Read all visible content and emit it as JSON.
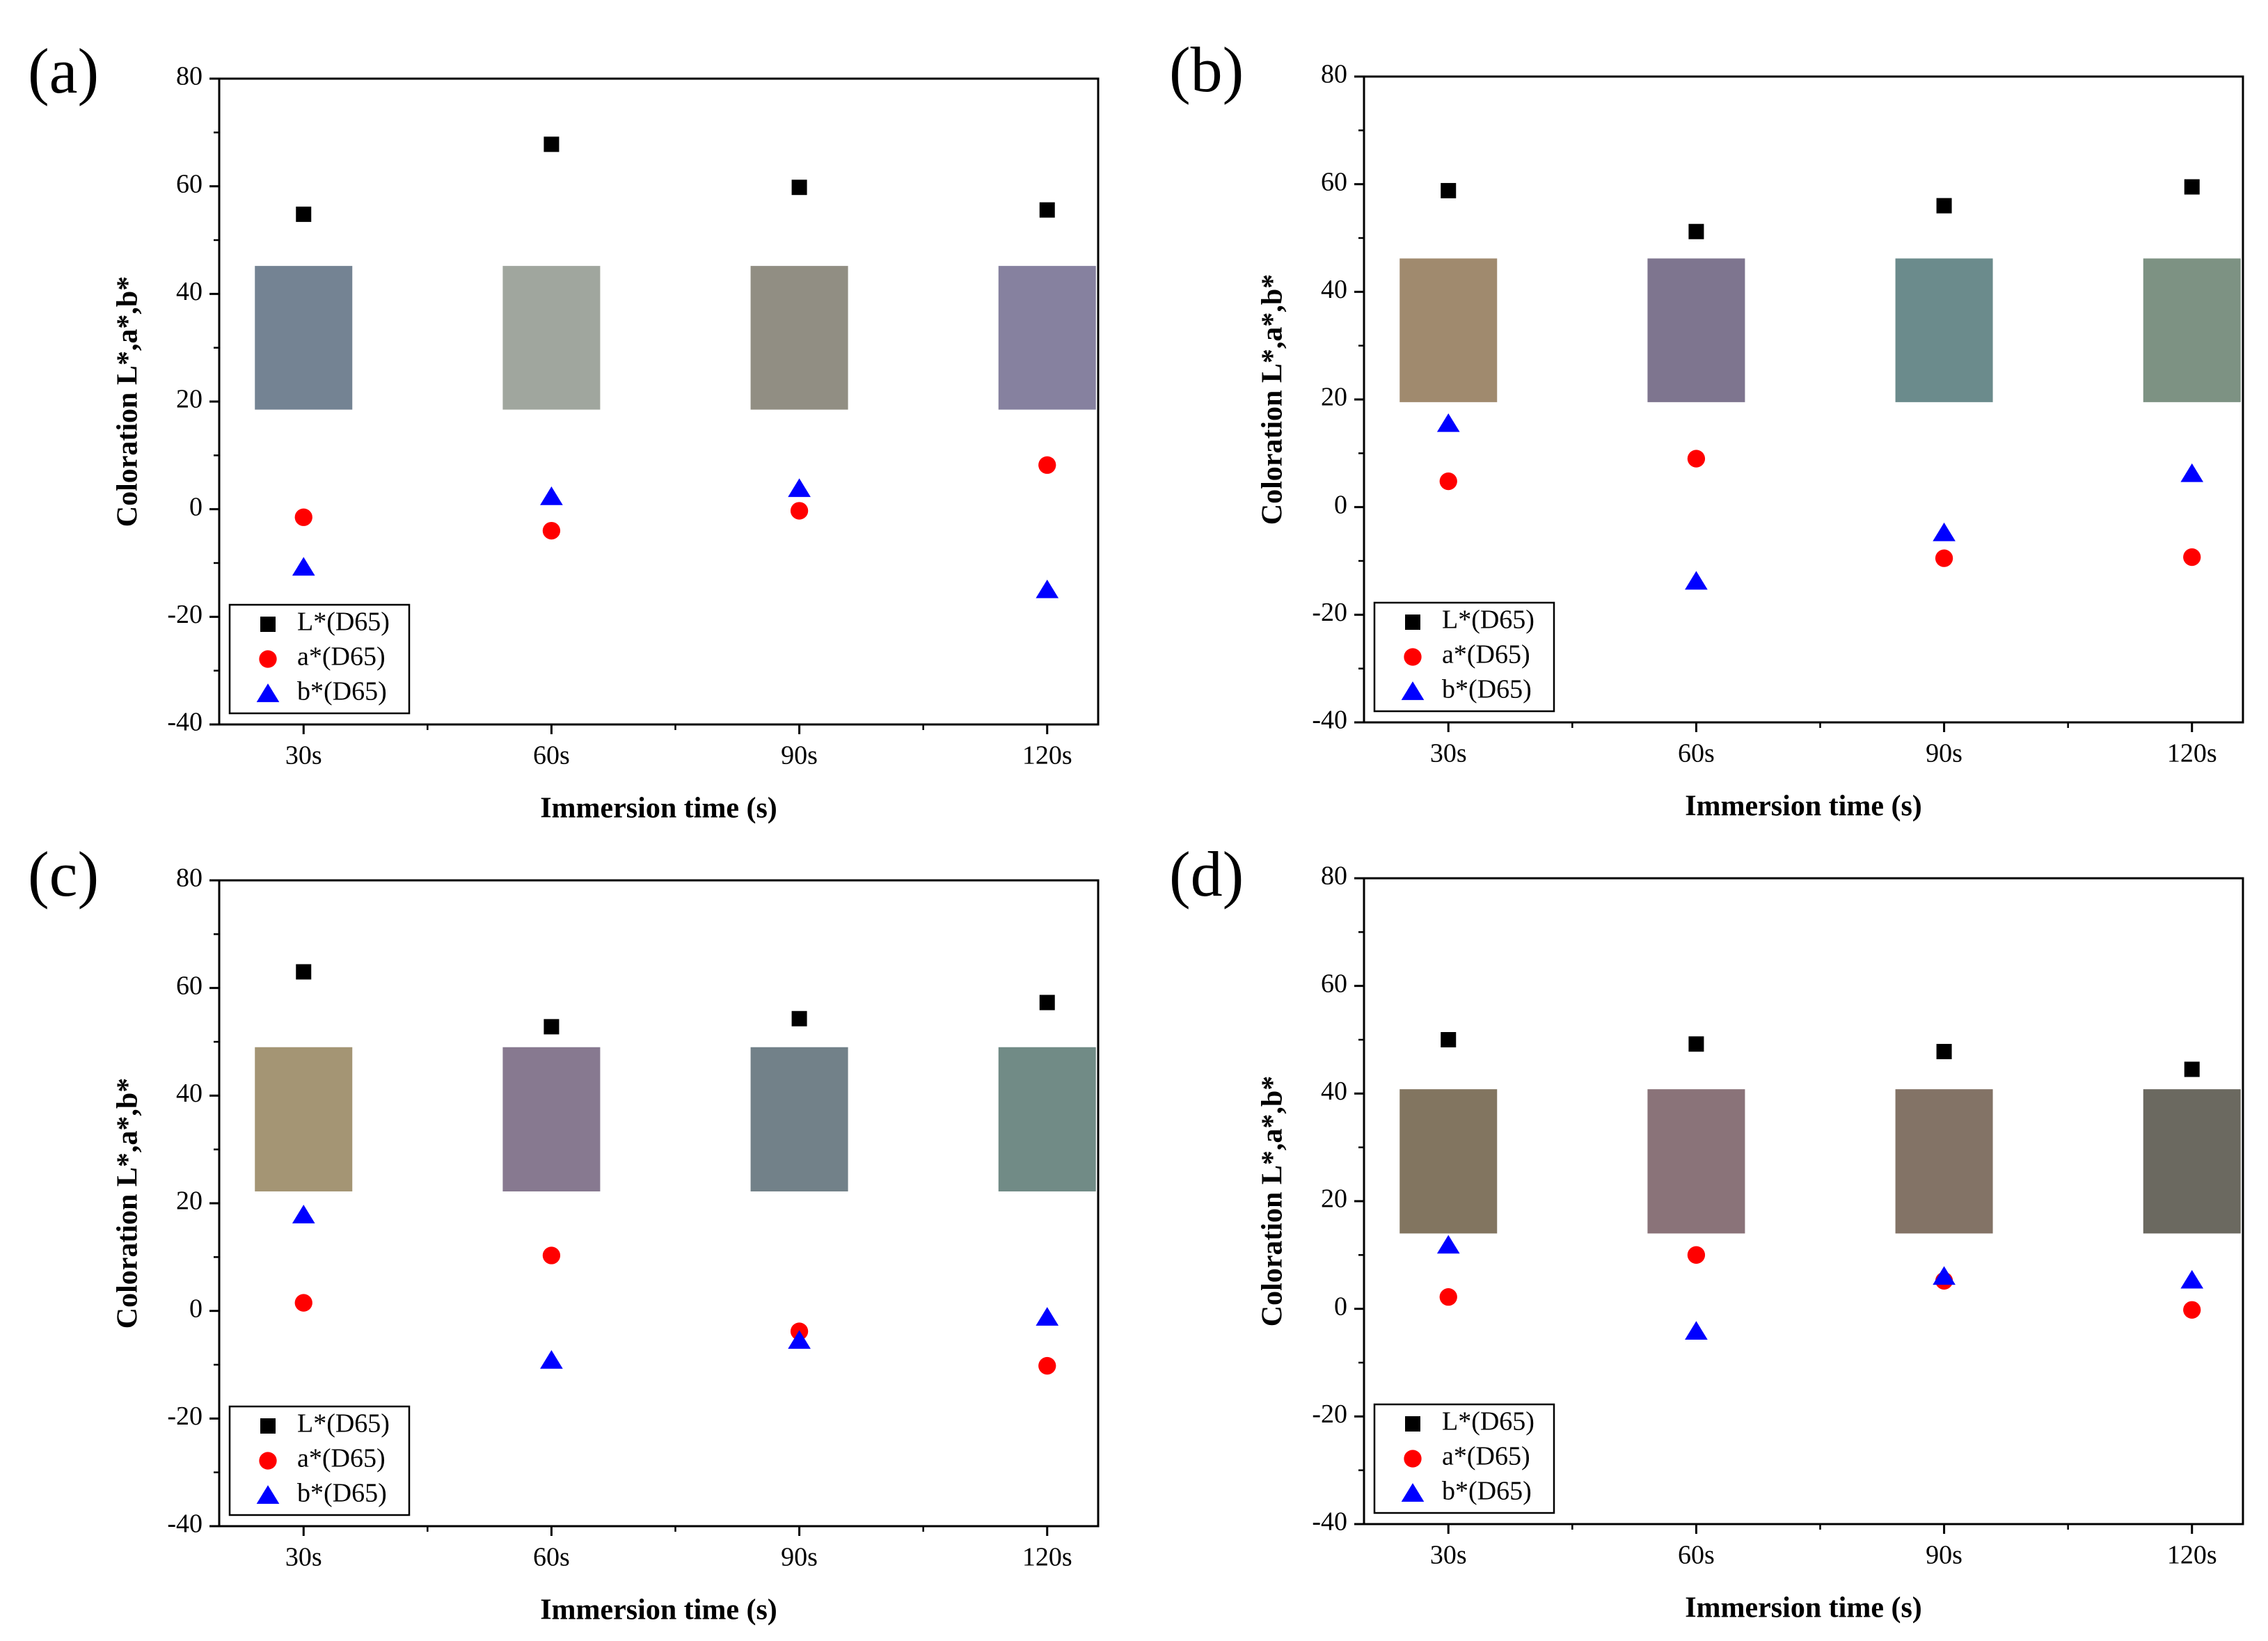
{
  "chart_data": [
    {
      "panel": "(a)",
      "type": "scatter",
      "xlabel": "Immersion time (s)",
      "ylabel": "Coloration L*,a*,b*",
      "ylim": [
        -40,
        80
      ],
      "yticks": [
        -40,
        -20,
        0,
        20,
        40,
        60,
        80
      ],
      "categories": [
        "30s",
        "60s",
        "90s",
        "120s"
      ],
      "series": [
        {
          "name": "L*(D65)",
          "marker": "square",
          "color": "#000000",
          "values": [
            54.8,
            67.8,
            59.8,
            55.6
          ]
        },
        {
          "name": "a*(D65)",
          "marker": "circle",
          "color": "#ff0000",
          "values": [
            -1.5,
            -4.0,
            -0.3,
            8.2
          ]
        },
        {
          "name": "b*(D65)",
          "marker": "triangle",
          "color": "#0000ff",
          "values": [
            -10.8,
            2.3,
            3.8,
            -15.0
          ]
        }
      ],
      "swatches": {
        "y_range": [
          18.5,
          45.2
        ],
        "colors": [
          "#748393",
          "#a0a69e",
          "#918e83",
          "#86819f"
        ]
      },
      "legend_position": "bottom-left"
    },
    {
      "panel": "(b)",
      "type": "scatter",
      "xlabel": "Immersion time (s)",
      "ylabel": "Coloration L*,a*,b*",
      "ylim": [
        -40,
        80
      ],
      "yticks": [
        -40,
        -20,
        0,
        20,
        40,
        60,
        80
      ],
      "categories": [
        "30s",
        "60s",
        "90s",
        "120s"
      ],
      "series": [
        {
          "name": "L*(D65)",
          "marker": "square",
          "color": "#000000",
          "values": [
            58.8,
            51.2,
            56.0,
            59.5
          ]
        },
        {
          "name": "a*(D65)",
          "marker": "circle",
          "color": "#ff0000",
          "values": [
            4.8,
            9.0,
            -9.5,
            -9.3
          ]
        },
        {
          "name": "b*(D65)",
          "marker": "triangle",
          "color": "#0000ff",
          "values": [
            15.5,
            -13.8,
            -4.8,
            6.2
          ]
        }
      ],
      "swatches": {
        "y_range": [
          19.5,
          46.2
        ],
        "colors": [
          "#a08a6e",
          "#7e758f",
          "#6b8b8c",
          "#7d9283"
        ]
      },
      "legend_position": "bottom-left"
    },
    {
      "panel": "(c)",
      "type": "scatter",
      "xlabel": "Immersion time (s)",
      "ylabel": "Coloration L*,a*,b*",
      "ylim": [
        -40,
        80
      ],
      "yticks": [
        -40,
        -20,
        0,
        20,
        40,
        60,
        80
      ],
      "categories": [
        "30s",
        "60s",
        "90s",
        "120s"
      ],
      "series": [
        {
          "name": "L*(D65)",
          "marker": "square",
          "color": "#000000",
          "values": [
            63.0,
            52.8,
            54.3,
            57.3
          ]
        },
        {
          "name": "a*(D65)",
          "marker": "circle",
          "color": "#ff0000",
          "values": [
            1.5,
            10.3,
            -3.8,
            -10.2
          ]
        },
        {
          "name": "b*(D65)",
          "marker": "triangle",
          "color": "#0000ff",
          "values": [
            17.8,
            -9.2,
            -5.5,
            -1.2
          ]
        }
      ],
      "swatches": {
        "y_range": [
          22.2,
          49.0
        ],
        "colors": [
          "#a49574",
          "#877990",
          "#728189",
          "#718b86"
        ]
      },
      "legend_position": "bottom-left"
    },
    {
      "panel": "(d)",
      "type": "scatter",
      "xlabel": "Immersion time (s)",
      "ylabel": "Coloration L*,a*,b*",
      "ylim": [
        -40,
        80
      ],
      "yticks": [
        -40,
        -20,
        0,
        20,
        40,
        60,
        80
      ],
      "categories": [
        "30s",
        "60s",
        "90s",
        "120s"
      ],
      "series": [
        {
          "name": "L*(D65)",
          "marker": "square",
          "color": "#000000",
          "values": [
            50.0,
            49.2,
            47.8,
            44.5
          ]
        },
        {
          "name": "a*(D65)",
          "marker": "circle",
          "color": "#ff0000",
          "values": [
            2.2,
            10.0,
            5.2,
            -0.2
          ]
        },
        {
          "name": "b*(D65)",
          "marker": "triangle",
          "color": "#0000ff",
          "values": [
            11.8,
            -4.2,
            6.0,
            5.3
          ]
        }
      ],
      "swatches": {
        "y_range": [
          14.0,
          40.8
        ],
        "colors": [
          "#827560",
          "#8a7379",
          "#837366",
          "#6b6960"
        ]
      },
      "legend_position": "bottom-left"
    }
  ]
}
